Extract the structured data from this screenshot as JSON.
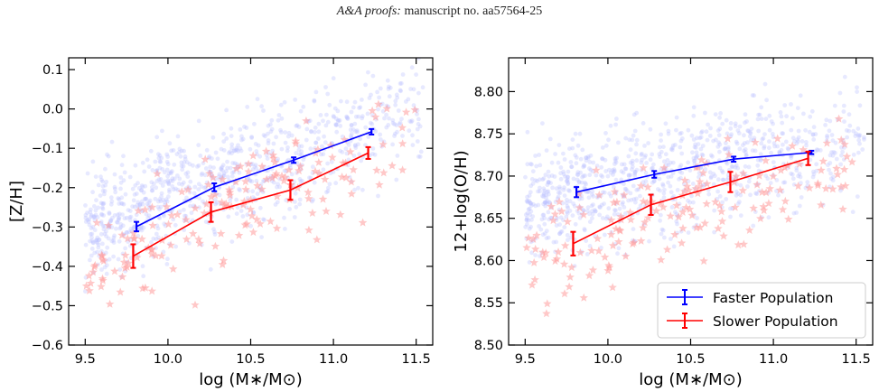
{
  "header": {
    "journal": "A&A proofs:",
    "manuscript": "manuscript no. aa57564-25"
  },
  "colors": {
    "faster": "#0000ff",
    "slower": "#ff0000",
    "faster_scatter": "#b9bfff",
    "slower_scatter": "#ff9a9a"
  },
  "chart_data": [
    {
      "type": "line",
      "xlabel": "log (M∗/M⊙)",
      "ylabel": "[Z/H]",
      "xlim": [
        9.4,
        11.6
      ],
      "ylim": [
        -0.6,
        0.13
      ],
      "xticks": [
        9.5,
        10.0,
        10.5,
        11.0,
        11.5
      ],
      "xtick_labels": [
        "9.5",
        "10.0",
        "10.5",
        "11.0",
        "11.5"
      ],
      "yticks": [
        -0.6,
        -0.5,
        -0.4,
        -0.3,
        -0.2,
        -0.1,
        0.0,
        0.1
      ],
      "ytick_labels": [
        "−0.6",
        "−0.5",
        "−0.4",
        "−0.3",
        "−0.2",
        "−0.1",
        "0.0",
        "0.1"
      ],
      "series": [
        {
          "name": "Faster Population",
          "x": [
            9.81,
            10.28,
            10.76,
            11.23
          ],
          "y": [
            -0.299,
            -0.199,
            -0.13,
            -0.058
          ],
          "yerr": [
            0.012,
            0.01,
            0.007,
            0.007
          ]
        },
        {
          "name": "Slower Population",
          "x": [
            9.79,
            10.26,
            10.74,
            11.21
          ],
          "y": [
            -0.374,
            -0.262,
            -0.206,
            -0.112
          ],
          "yerr": [
            0.03,
            0.025,
            0.025,
            0.015
          ]
        }
      ],
      "background_scatter": {
        "faster_points": {
          "count": 900,
          "x_range": [
            9.5,
            11.55
          ],
          "y_trend": "rising from about -0.3 at 9.5 to about 0.0 at 11.5",
          "marker": "circle"
        },
        "slower_points": {
          "count": 170,
          "x_range": [
            9.5,
            11.55
          ],
          "y_trend": "rising from about -0.4 at 9.5 to about -0.05 at 11.5",
          "marker": "star"
        }
      }
    },
    {
      "type": "line",
      "xlabel": "log (M∗/M⊙)",
      "ylabel": "12+log(O/H)",
      "xlim": [
        9.4,
        11.6
      ],
      "ylim": [
        8.5,
        8.84
      ],
      "xticks": [
        9.5,
        10.0,
        10.5,
        11.0,
        11.5
      ],
      "xtick_labels": [
        "9.5",
        "10.0",
        "10.5",
        "11.0",
        "11.5"
      ],
      "yticks": [
        8.5,
        8.55,
        8.6,
        8.65,
        8.7,
        8.75,
        8.8
      ],
      "ytick_labels": [
        "8.50",
        "8.55",
        "8.60",
        "8.65",
        "8.70",
        "8.75",
        "8.80"
      ],
      "legend": {
        "placement": "lower-right",
        "entries": [
          "Faster Population",
          "Slower Population"
        ]
      },
      "series": [
        {
          "name": "Faster Population",
          "x": [
            9.81,
            10.28,
            10.76,
            11.23
          ],
          "y": [
            8.681,
            8.702,
            8.72,
            8.728
          ],
          "yerr": [
            0.006,
            0.004,
            0.003,
            0.002
          ]
        },
        {
          "name": "Slower Population",
          "x": [
            9.79,
            10.26,
            10.74,
            11.21
          ],
          "y": [
            8.62,
            8.666,
            8.693,
            8.721
          ],
          "yerr": [
            0.014,
            0.012,
            0.012,
            0.008
          ]
        }
      ],
      "background_scatter": {
        "faster_points": {
          "count": 900,
          "x_range": [
            9.5,
            11.55
          ],
          "y_trend": "rising from about 8.67 at 9.5 to about 8.74 at 11.5",
          "marker": "circle"
        },
        "slower_points": {
          "count": 170,
          "x_range": [
            9.5,
            11.55
          ],
          "y_trend": "rising from about 8.6 at 9.5 to about 8.72 at 11.5",
          "marker": "star"
        }
      }
    }
  ]
}
